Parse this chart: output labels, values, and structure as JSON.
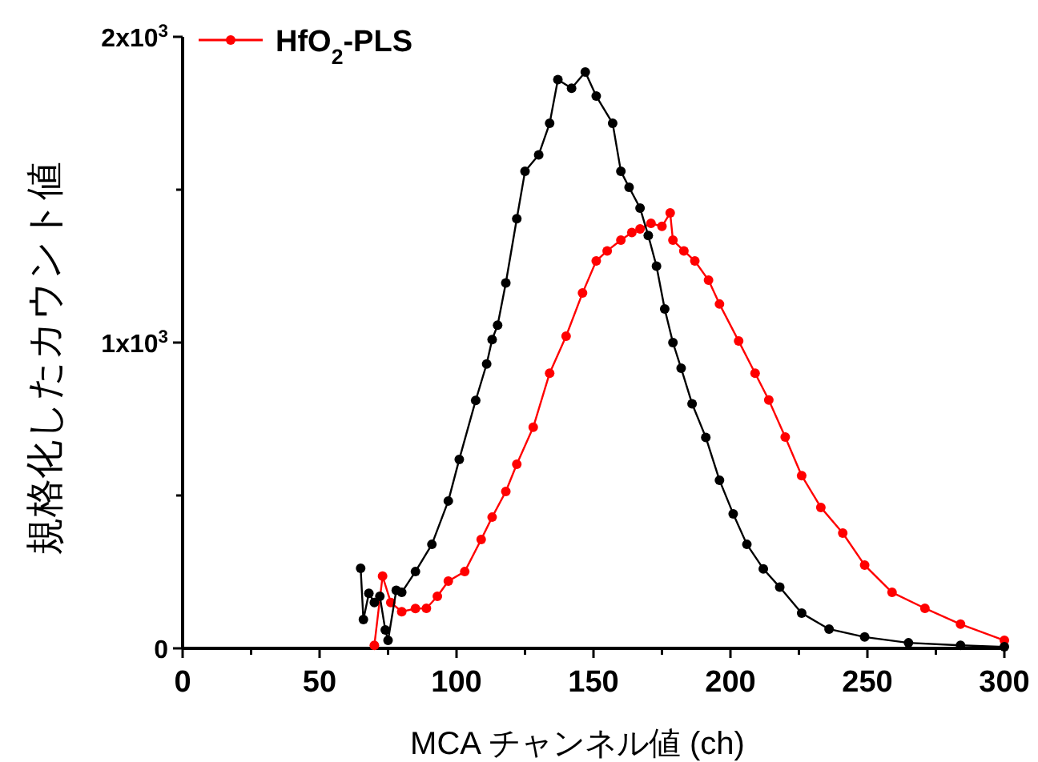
{
  "chart_data": {
    "type": "line",
    "xlabel": "MCA チャンネル値 (ch)",
    "ylabel": "規格化したカウント値",
    "xlim": [
      0,
      300
    ],
    "ylim": [
      0,
      2000
    ],
    "xticks": [
      0,
      {
        "value": 25,
        "label": null
      },
      50,
      {
        "value": 75,
        "label": null
      },
      100,
      {
        "value": 125,
        "label": null
      },
      150,
      {
        "value": 175,
        "label": null
      },
      200,
      {
        "value": 225,
        "label": null
      },
      250,
      {
        "value": 275,
        "label": null
      },
      300
    ],
    "yticks": [
      0,
      {
        "value": 500,
        "label": null
      },
      {
        "value": 1000,
        "label": "1x10$^{3}$"
      },
      {
        "value": 1500,
        "label": null
      },
      {
        "value": 2000,
        "label": "2x10$^{3}$"
      }
    ],
    "legend": "top left",
    "marker": "circle",
    "line_style": "solid",
    "series": [
      {
        "name": "HfO$_{2}$-PLS",
        "color": "#ff0000",
        "x": [
          70,
          73,
          76,
          80,
          85,
          89,
          93,
          97,
          103,
          109,
          113,
          118,
          122,
          128,
          134,
          140,
          146,
          151,
          155,
          160,
          164,
          167,
          171,
          175,
          178,
          179,
          183,
          187,
          192,
          196,
          203,
          209,
          214,
          220,
          226,
          233,
          241,
          249,
          259,
          271,
          284,
          300
        ],
        "values": [
          10,
          236,
          150,
          120,
          130,
          131,
          170,
          220,
          251,
          356,
          429,
          513,
          602,
          723,
          900,
          1021,
          1162,
          1267,
          1300,
          1335,
          1360,
          1372,
          1390,
          1380,
          1424,
          1335,
          1300,
          1267,
          1204,
          1126,
          1005,
          900,
          812,
          691,
          565,
          461,
          377,
          272,
          183,
          131,
          79,
          26
        ]
      },
      {
        "color": "#000000",
        "x": [
          65,
          66,
          68,
          70,
          72,
          74,
          75,
          78,
          80,
          85,
          91,
          97,
          101,
          107,
          111,
          113,
          115,
          118,
          122,
          125,
          130,
          134,
          137,
          142,
          147,
          151,
          157,
          160,
          163,
          167,
          170,
          173,
          176,
          179,
          182,
          186,
          191,
          196,
          201,
          206,
          212,
          218,
          226,
          236,
          249,
          265,
          284,
          300
        ],
        "values": [
          262,
          94,
          180,
          150,
          170,
          60,
          26,
          190,
          183,
          251,
          340,
          482,
          618,
          811,
          930,
          1010,
          1057,
          1195,
          1405,
          1560,
          1614,
          1717,
          1860,
          1832,
          1885,
          1806,
          1717,
          1560,
          1508,
          1440,
          1350,
          1250,
          1110,
          1000,
          916,
          800,
          690,
          550,
          440,
          340,
          260,
          200,
          115,
          63,
          37,
          18,
          10,
          5
        ]
      }
    ]
  }
}
